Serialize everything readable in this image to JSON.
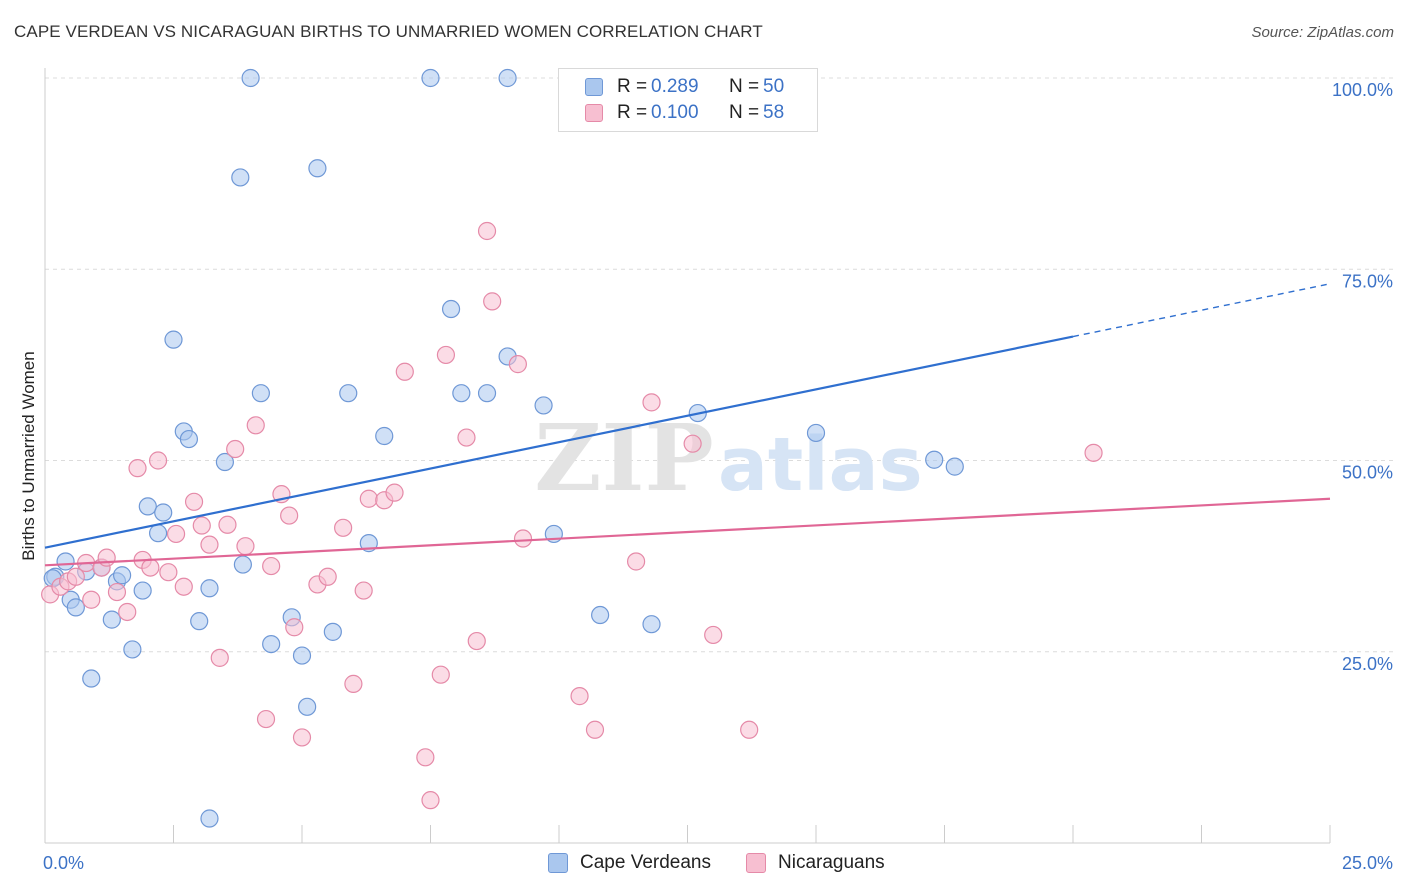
{
  "header": {
    "title": "CAPE VERDEAN VS NICARAGUAN BIRTHS TO UNMARRIED WOMEN CORRELATION CHART",
    "source": "Source: ZipAtlas.com"
  },
  "watermark": {
    "zip": "ZIP",
    "atlas": "atlas"
  },
  "legend_top": {
    "rows": [
      {
        "r_label": "R =",
        "r_value": "0.289",
        "n_label": "N =",
        "n_value": "50",
        "color": "#aac7ee",
        "stroke": "#6f98d6"
      },
      {
        "r_label": "R =",
        "r_value": "0.100",
        "n_label": "N =",
        "n_value": "58",
        "color": "#f7bfd1",
        "stroke": "#e58aa8"
      }
    ]
  },
  "legend_bottom": {
    "items": [
      {
        "label": "Cape Verdeans",
        "color": "#aac7ee",
        "stroke": "#6f98d6"
      },
      {
        "label": "Nicaraguans",
        "color": "#f7bfd1",
        "stroke": "#e58aa8"
      }
    ]
  },
  "chart_data": {
    "type": "scatter",
    "title": "CAPE VERDEAN VS NICARAGUAN BIRTHS TO UNMARRIED WOMEN CORRELATION CHART",
    "xlabel": "",
    "ylabel": "Births to Unmarried Women",
    "xlim": [
      0,
      25
    ],
    "ylim": [
      0,
      100
    ],
    "x_ticks": [
      {
        "value": 0,
        "label": "0.0%"
      },
      {
        "value": 25,
        "label": "25.0%"
      }
    ],
    "y_ticks": [
      {
        "value": 25,
        "label": "25.0%"
      },
      {
        "value": 50,
        "label": "50.0%"
      },
      {
        "value": 75,
        "label": "75.0%"
      },
      {
        "value": 100,
        "label": "100.0%"
      }
    ],
    "grid": true,
    "legend_position": "top-center",
    "series": [
      {
        "name": "Cape Verdeans",
        "color": "#aac7ee",
        "stroke": "#6f98d6",
        "line_color": "#2f6fcf",
        "trend": {
          "x0": 0,
          "y0": 38.6,
          "x1": 20,
          "y1": 66.2,
          "dash_to_x": 25
        },
        "points": [
          [
            0.2,
            34.8
          ],
          [
            0.4,
            36.8
          ],
          [
            0.5,
            31.8
          ],
          [
            0.6,
            30.8
          ],
          [
            0.8,
            35.5
          ],
          [
            0.9,
            21.5
          ],
          [
            1.1,
            36.0
          ],
          [
            1.3,
            29.2
          ],
          [
            1.4,
            34.2
          ],
          [
            1.5,
            35.0
          ],
          [
            1.7,
            25.3
          ],
          [
            1.9,
            33.0
          ],
          [
            2.0,
            44.0
          ],
          [
            2.2,
            40.5
          ],
          [
            2.3,
            43.2
          ],
          [
            2.5,
            65.8
          ],
          [
            2.7,
            53.8
          ],
          [
            2.8,
            52.8
          ],
          [
            3.0,
            29.0
          ],
          [
            3.2,
            33.3
          ],
          [
            3.2,
            3.2
          ],
          [
            3.5,
            49.8
          ],
          [
            3.8,
            87.0
          ],
          [
            3.85,
            36.4
          ],
          [
            4.0,
            100.0
          ],
          [
            4.2,
            58.8
          ],
          [
            4.4,
            26.0
          ],
          [
            4.8,
            29.5
          ],
          [
            5.0,
            24.5
          ],
          [
            5.1,
            17.8
          ],
          [
            5.3,
            88.2
          ],
          [
            5.6,
            27.6
          ],
          [
            5.9,
            58.8
          ],
          [
            6.3,
            39.2
          ],
          [
            6.6,
            53.2
          ],
          [
            7.5,
            100.0
          ],
          [
            7.9,
            69.8
          ],
          [
            8.1,
            58.8
          ],
          [
            9.0,
            100.0
          ],
          [
            9.0,
            63.6
          ],
          [
            8.6,
            58.8
          ],
          [
            9.7,
            57.2
          ],
          [
            9.9,
            40.4
          ],
          [
            10.8,
            29.8
          ],
          [
            11.8,
            28.6
          ],
          [
            12.7,
            56.2
          ],
          [
            15.0,
            53.6
          ],
          [
            17.3,
            50.1
          ],
          [
            17.7,
            49.2
          ],
          [
            0.15,
            34.6
          ]
        ]
      },
      {
        "name": "Nicaraguans",
        "color": "#f7bfd1",
        "stroke": "#e58aa8",
        "line_color": "#e06695",
        "trend": {
          "x0": 0,
          "y0": 36.3,
          "x1": 25,
          "y1": 45.0
        },
        "points": [
          [
            0.1,
            32.5
          ],
          [
            0.3,
            33.5
          ],
          [
            0.45,
            34.2
          ],
          [
            0.6,
            34.8
          ],
          [
            0.8,
            36.6
          ],
          [
            0.9,
            31.8
          ],
          [
            1.1,
            36.0
          ],
          [
            1.2,
            37.3
          ],
          [
            1.4,
            32.8
          ],
          [
            1.6,
            30.2
          ],
          [
            1.8,
            49.0
          ],
          [
            1.9,
            37.0
          ],
          [
            2.05,
            36.0
          ],
          [
            2.2,
            50.0
          ],
          [
            2.4,
            35.4
          ],
          [
            2.55,
            40.4
          ],
          [
            2.7,
            33.5
          ],
          [
            2.9,
            44.6
          ],
          [
            3.05,
            41.5
          ],
          [
            3.2,
            39.0
          ],
          [
            3.4,
            24.2
          ],
          [
            3.55,
            41.6
          ],
          [
            3.7,
            51.5
          ],
          [
            3.9,
            38.8
          ],
          [
            4.1,
            54.6
          ],
          [
            4.3,
            16.2
          ],
          [
            4.4,
            36.2
          ],
          [
            4.6,
            45.6
          ],
          [
            4.75,
            42.8
          ],
          [
            4.85,
            28.2
          ],
          [
            5.0,
            13.8
          ],
          [
            5.3,
            33.8
          ],
          [
            5.5,
            34.8
          ],
          [
            5.8,
            41.2
          ],
          [
            6.0,
            20.8
          ],
          [
            6.2,
            33.0
          ],
          [
            6.3,
            45.0
          ],
          [
            6.6,
            44.8
          ],
          [
            6.8,
            45.8
          ],
          [
            7.0,
            61.6
          ],
          [
            7.4,
            11.2
          ],
          [
            7.5,
            5.6
          ],
          [
            7.7,
            22.0
          ],
          [
            7.8,
            63.8
          ],
          [
            8.2,
            53.0
          ],
          [
            8.4,
            26.4
          ],
          [
            8.6,
            80.0
          ],
          [
            8.7,
            70.8
          ],
          [
            9.2,
            62.6
          ],
          [
            9.3,
            39.8
          ],
          [
            10.4,
            19.2
          ],
          [
            10.7,
            14.8
          ],
          [
            11.5,
            36.8
          ],
          [
            11.8,
            57.6
          ],
          [
            12.6,
            52.2
          ],
          [
            13.0,
            27.2
          ],
          [
            13.7,
            14.8
          ],
          [
            20.4,
            51.0
          ]
        ]
      }
    ]
  }
}
